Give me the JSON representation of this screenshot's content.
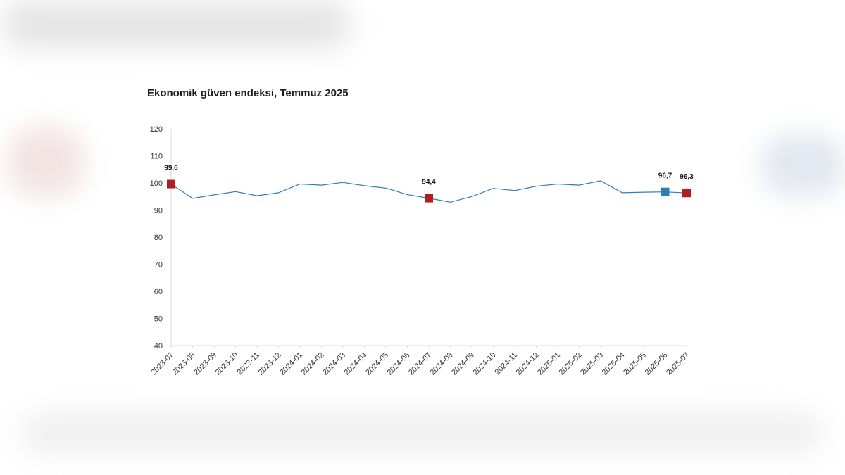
{
  "chart_data": {
    "type": "line",
    "title": "Ekonomik güven endeksi, Temmuz 2025",
    "xlabel": "",
    "ylabel": "",
    "ylim": [
      40,
      120
    ],
    "yticks": [
      40,
      50,
      60,
      70,
      80,
      90,
      100,
      110,
      120
    ],
    "grid": false,
    "legend": "none",
    "categories": [
      "2023-07",
      "2023-08",
      "2023-09",
      "2023-10",
      "2023-11",
      "2023-12",
      "2024-01",
      "2024-02",
      "2024-03",
      "2024-04",
      "2024-05",
      "2024-06",
      "2024-07",
      "2024-08",
      "2024-09",
      "2024-10",
      "2024-11",
      "2024-12",
      "2025-01",
      "2025-02",
      "2025-03",
      "2025-04",
      "2025-05",
      "2025-06",
      "2025-07"
    ],
    "series": [
      {
        "values": [
          99.6,
          94.3,
          95.6,
          96.8,
          95.3,
          96.4,
          99.6,
          99.2,
          100.2,
          99.0,
          98.1,
          95.7,
          94.4,
          92.9,
          95.0,
          98.0,
          97.2,
          98.8,
          99.6,
          99.2,
          100.8,
          96.4,
          96.6,
          96.7,
          96.3
        ],
        "color": "#2f7db8"
      }
    ],
    "highlights": [
      {
        "category": "2023-07",
        "value": 99.6,
        "label": "99,6",
        "color": "#b01e23"
      },
      {
        "category": "2024-07",
        "value": 94.4,
        "label": "94,4",
        "color": "#b01e23"
      },
      {
        "category": "2025-06",
        "value": 96.7,
        "label": "96,7",
        "color": "#2f7db8"
      },
      {
        "category": "2025-07",
        "value": 96.3,
        "label": "96,3",
        "color": "#b01e23"
      }
    ],
    "axis_color": "#d9d9d9"
  }
}
